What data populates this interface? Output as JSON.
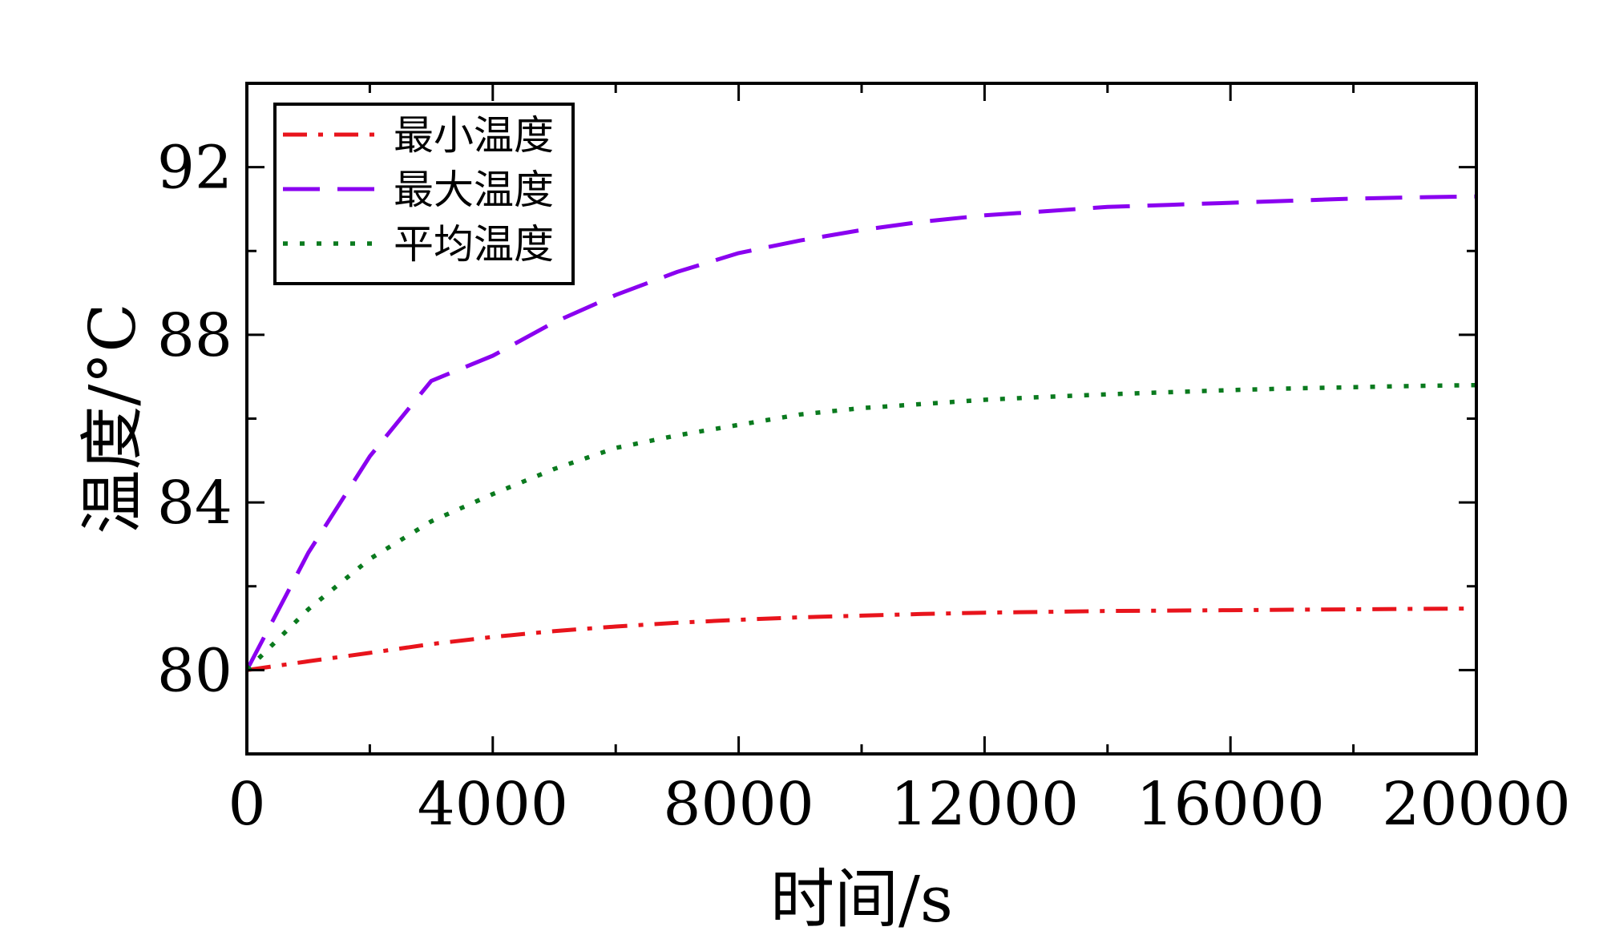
{
  "chart_data": {
    "type": "line",
    "title": "",
    "xlabel": "时间/s",
    "ylabel": "温度/°C",
    "xlim": [
      0,
      20000
    ],
    "ylim": [
      78,
      94
    ],
    "x_ticks": [
      0,
      4000,
      8000,
      12000,
      16000,
      20000
    ],
    "x_tick_labels": [
      "0",
      "4000",
      "8000",
      "12000",
      "16000",
      "20000"
    ],
    "y_ticks": [
      80,
      84,
      88,
      92
    ],
    "y_tick_labels": [
      "80",
      "84",
      "88",
      "92"
    ],
    "grid": false,
    "legend_position": "top-left",
    "x": [
      0,
      1000,
      2000,
      3000,
      4000,
      5000,
      6000,
      7000,
      8000,
      9000,
      10000,
      11000,
      12000,
      13000,
      14000,
      15000,
      16000,
      17000,
      18000,
      19000,
      20000
    ],
    "series": [
      {
        "name": "最小温度",
        "color": "#e8141c",
        "dash": "dash-dot",
        "values": [
          80.0,
          80.21,
          80.41,
          80.62,
          80.79,
          80.93,
          81.04,
          81.13,
          81.2,
          81.26,
          81.3,
          81.34,
          81.37,
          81.39,
          81.41,
          81.42,
          81.43,
          81.44,
          81.45,
          81.46,
          81.47
        ]
      },
      {
        "name": "最大温度",
        "color": "#8a00f0",
        "dash": "long-dash",
        "values": [
          80.0,
          82.8,
          85.1,
          86.9,
          87.5,
          88.3,
          88.95,
          89.5,
          89.95,
          90.25,
          90.5,
          90.7,
          90.85,
          90.95,
          91.05,
          91.1,
          91.15,
          91.2,
          91.25,
          91.28,
          91.3
        ]
      },
      {
        "name": "平均温度",
        "color": "#0a7a1e",
        "dash": "dotted",
        "values": [
          80.0,
          81.45,
          82.65,
          83.55,
          84.2,
          84.8,
          85.3,
          85.6,
          85.85,
          86.1,
          86.25,
          86.35,
          86.45,
          86.52,
          86.58,
          86.63,
          86.68,
          86.72,
          86.75,
          86.78,
          86.8
        ]
      }
    ]
  }
}
